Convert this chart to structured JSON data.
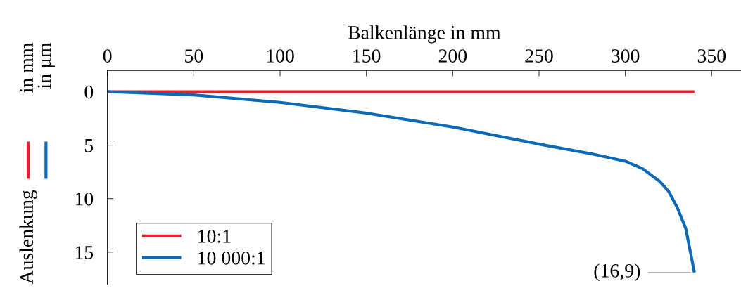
{
  "chart_data": {
    "type": "line",
    "xlabel": "Balkenlänge in mm",
    "ylabel": "Auslenkung",
    "xlim": [
      0,
      367
    ],
    "xticks": [
      0,
      50,
      100,
      150,
      200,
      250,
      300,
      350
    ],
    "ylim": [
      18,
      -2
    ],
    "yticks": [
      0,
      5,
      10,
      15
    ],
    "grid": false,
    "legend": "bottom left",
    "line_style": "solid",
    "marker": "none",
    "series": [
      {
        "name": "10:1",
        "color": "#e3202b",
        "x": [
          0,
          340
        ],
        "values": [
          0,
          0
        ]
      },
      {
        "name": "10 000:1",
        "color": "#0a6ab8",
        "x": [
          0,
          50,
          100,
          150,
          200,
          250,
          280,
          300,
          310,
          320,
          325,
          330,
          335,
          340
        ],
        "values": [
          0,
          0.3,
          1.0,
          2.0,
          3.3,
          4.9,
          5.8,
          6.5,
          7.2,
          8.4,
          9.3,
          10.8,
          12.8,
          16.9
        ]
      }
    ],
    "annotations": [
      "in mm",
      "in µm",
      {
        "text": "(16,9)",
        "x": 340,
        "y": 16.9
      }
    ]
  }
}
